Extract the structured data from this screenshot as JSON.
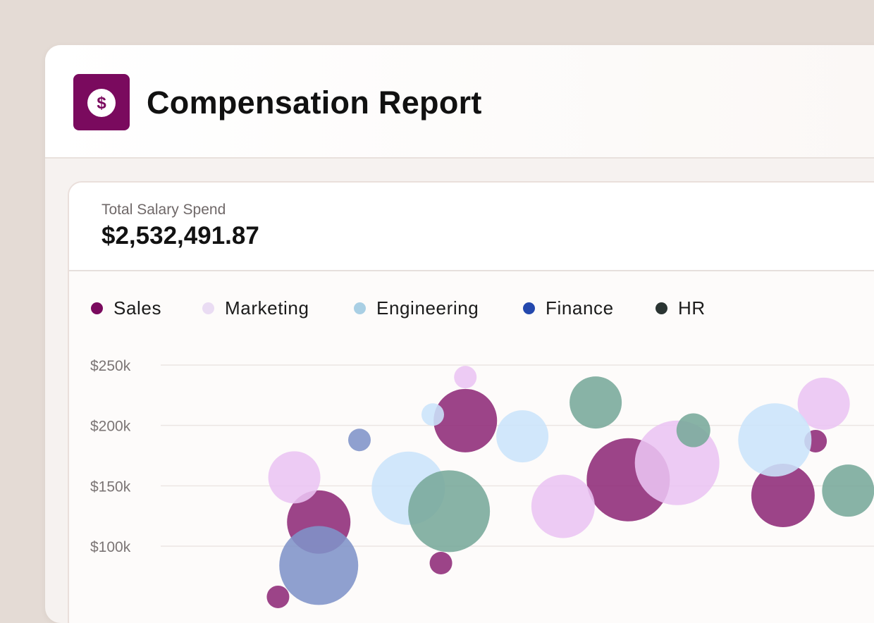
{
  "app": {
    "title": "Compensation Report",
    "icon": "dollar-icon",
    "accent": "#7a0a5e"
  },
  "summary": {
    "label": "Total Salary Spend",
    "value": "$2,532,491.87"
  },
  "chart_data": {
    "type": "scatter",
    "title": "",
    "xlabel": "",
    "ylabel": "",
    "ylim": [
      50000,
      275000
    ],
    "y_ticks": [
      "$250k",
      "$200k",
      "$150k",
      "$100k"
    ],
    "y_tick_values": [
      250000,
      200000,
      150000,
      100000
    ],
    "grid": true,
    "legend": "top-left",
    "series": [
      {
        "name": "Sales",
        "color": "#7a0a5e",
        "points": [
          {
            "x": 3.2,
            "y": 120000,
            "r": 45
          },
          {
            "x": 5.0,
            "y": 204000,
            "r": 45
          },
          {
            "x": 7.0,
            "y": 155000,
            "r": 59
          },
          {
            "x": 8.9,
            "y": 142000,
            "r": 45
          },
          {
            "x": 9.3,
            "y": 187000,
            "r": 16
          },
          {
            "x": 4.7,
            "y": 86000,
            "r": 16
          },
          {
            "x": 2.7,
            "y": 58000,
            "r": 16
          }
        ]
      },
      {
        "name": "Marketing",
        "color": "#e6c0ef",
        "points": [
          {
            "x": 2.9,
            "y": 157000,
            "r": 37
          },
          {
            "x": 5.0,
            "y": 240000,
            "r": 16
          },
          {
            "x": 6.2,
            "y": 133000,
            "r": 45
          },
          {
            "x": 7.6,
            "y": 169000,
            "r": 60
          },
          {
            "x": 9.4,
            "y": 218000,
            "r": 37
          }
        ]
      },
      {
        "name": "Engineering",
        "color": "#c9e2f8",
        "points": [
          {
            "x": 4.3,
            "y": 148000,
            "r": 52
          },
          {
            "x": 4.6,
            "y": 209000,
            "r": 16
          },
          {
            "x": 5.7,
            "y": 191000,
            "r": 37
          },
          {
            "x": 8.8,
            "y": 188000,
            "r": 52
          }
        ]
      },
      {
        "name": "Finance",
        "color": "#2a4aa8",
        "points": [
          {
            "x": 3.7,
            "y": 188000,
            "r": 16
          },
          {
            "x": 3.2,
            "y": 84000,
            "r": 56
          }
        ]
      },
      {
        "name": "HR",
        "color": "#2a3a36",
        "points": [
          {
            "x": 4.8,
            "y": 129000,
            "r": 58
          },
          {
            "x": 6.6,
            "y": 219000,
            "r": 37
          },
          {
            "x": 7.8,
            "y": 196000,
            "r": 24
          },
          {
            "x": 9.7,
            "y": 146000,
            "r": 37
          }
        ]
      }
    ],
    "legend_dot_colors": {
      "Sales": "#7a0a5e",
      "Marketing": "#eadcf3",
      "Engineering": "#a9cfe4",
      "Finance": "#2448ad",
      "HR": "#2a3432"
    },
    "bubble_fill_colors": {
      "Sales": "#8e2a78",
      "Marketing": "#eac4f2",
      "Engineering": "#cbe4fa",
      "Finance": "#7f93c8",
      "HR": "#78a89a"
    }
  }
}
